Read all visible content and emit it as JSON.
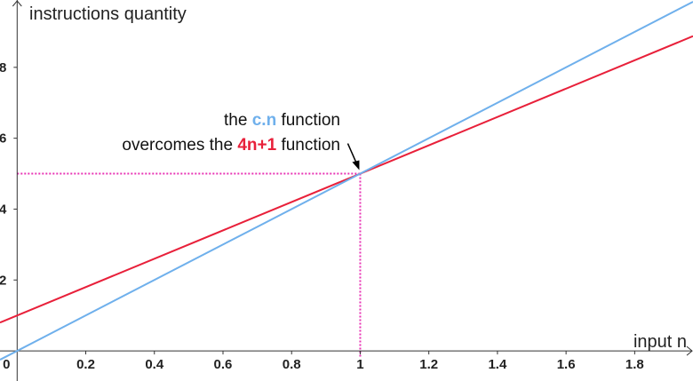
{
  "chart_data": {
    "type": "line",
    "title": "",
    "xlabel": "input n",
    "ylabel": "instructions quantity",
    "xlim": [
      -0.05,
      1.97
    ],
    "ylim": [
      -0.85,
      9.9
    ],
    "x_ticks": [
      0,
      0.2,
      0.4,
      0.6,
      0.8,
      1,
      1.2,
      1.4,
      1.6,
      1.8
    ],
    "x_tick_labels": [
      "0",
      "0.2",
      "0.4",
      "0.6",
      "0.8",
      "1",
      "1.2",
      "1.4",
      "1.6",
      "1.8"
    ],
    "y_ticks": [
      2,
      4,
      6,
      8
    ],
    "y_tick_labels": [
      "2",
      "4",
      "6",
      "8"
    ],
    "grid": false,
    "series": [
      {
        "color": "#e8203a",
        "x": [
          -0.05,
          1.97
        ],
        "y": [
          0.8,
          8.88
        ]
      },
      {
        "color": "#6fb0ec",
        "x": [
          -0.05,
          1.97
        ],
        "y": [
          -0.25,
          9.85
        ]
      }
    ],
    "annotation": {
      "line1_pre": "the ",
      "line1_hl": "c.n",
      "line1_post": " function",
      "line2_pre": "overcomes the ",
      "line2_hl": "4n+1",
      "line2_post": " function",
      "point": [
        1,
        5
      ]
    },
    "guide_color": "#e834b4"
  }
}
